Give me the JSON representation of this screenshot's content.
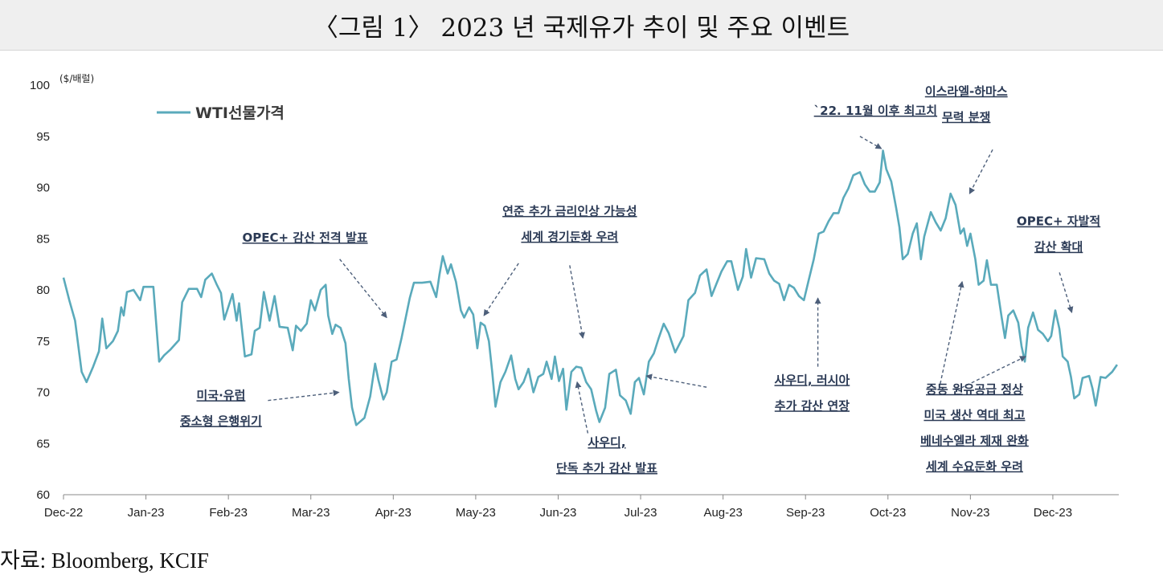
{
  "title": "〈그림 1〉 2023 년 국제유가 추이 및 주요 이벤트",
  "source": "자료: Bloomberg, KCIF",
  "colors": {
    "line": "#5aaabb",
    "arrow": "#4d5f7a",
    "annotation": "#2b3a55",
    "title_bg": "#efefef"
  },
  "chart_data": {
    "type": "line",
    "unit_label": "($/배럴)",
    "ylim": [
      60,
      100
    ],
    "yticks": [
      100,
      95,
      90,
      85,
      80,
      75,
      70,
      65,
      60
    ],
    "xlim": [
      0,
      12.8
    ],
    "xticks": [
      {
        "pos": 0,
        "label": "Dec-22"
      },
      {
        "pos": 1,
        "label": "Jan-23"
      },
      {
        "pos": 2,
        "label": "Feb-23"
      },
      {
        "pos": 3,
        "label": "Mar-23"
      },
      {
        "pos": 4,
        "label": "Apr-23"
      },
      {
        "pos": 5,
        "label": "May-23"
      },
      {
        "pos": 6,
        "label": "Jun-23"
      },
      {
        "pos": 7,
        "label": "Jul-23"
      },
      {
        "pos": 8,
        "label": "Aug-23"
      },
      {
        "pos": 9,
        "label": "Sep-23"
      },
      {
        "pos": 10,
        "label": "Oct-23"
      },
      {
        "pos": 11,
        "label": "Nov-23"
      },
      {
        "pos": 12,
        "label": "Dec-23"
      }
    ],
    "grid": false,
    "legend_position": "top-left",
    "series": [
      {
        "name": "WTI선물가격",
        "points": [
          [
            0.0,
            81.2
          ],
          [
            0.07,
            79.0
          ],
          [
            0.14,
            77.0
          ],
          [
            0.22,
            72.0
          ],
          [
            0.28,
            71.0
          ],
          [
            0.36,
            72.5
          ],
          [
            0.43,
            74.0
          ],
          [
            0.47,
            77.2
          ],
          [
            0.52,
            74.3
          ],
          [
            0.6,
            75.0
          ],
          [
            0.66,
            76.0
          ],
          [
            0.7,
            78.3
          ],
          [
            0.73,
            77.5
          ],
          [
            0.77,
            79.8
          ],
          [
            0.85,
            80.0
          ],
          [
            0.93,
            79.0
          ],
          [
            0.97,
            80.3
          ],
          [
            1.09,
            80.3
          ],
          [
            1.16,
            73.0
          ],
          [
            1.22,
            73.6
          ],
          [
            1.3,
            74.2
          ],
          [
            1.4,
            75.1
          ],
          [
            1.44,
            78.8
          ],
          [
            1.52,
            80.1
          ],
          [
            1.62,
            80.1
          ],
          [
            1.67,
            79.3
          ],
          [
            1.72,
            81.0
          ],
          [
            1.8,
            81.6
          ],
          [
            1.86,
            80.5
          ],
          [
            1.91,
            79.7
          ],
          [
            1.95,
            77.1
          ],
          [
            2.05,
            79.6
          ],
          [
            2.1,
            77.0
          ],
          [
            2.13,
            78.7
          ],
          [
            2.2,
            73.5
          ],
          [
            2.28,
            73.7
          ],
          [
            2.32,
            76.0
          ],
          [
            2.38,
            76.3
          ],
          [
            2.43,
            79.8
          ],
          [
            2.5,
            77.0
          ],
          [
            2.56,
            79.4
          ],
          [
            2.62,
            76.4
          ],
          [
            2.72,
            76.3
          ],
          [
            2.78,
            74.1
          ],
          [
            2.82,
            76.5
          ],
          [
            2.88,
            76.0
          ],
          [
            2.95,
            76.7
          ],
          [
            3.0,
            79.0
          ],
          [
            3.05,
            78.0
          ],
          [
            3.12,
            80.0
          ],
          [
            3.18,
            80.5
          ],
          [
            3.21,
            77.5
          ],
          [
            3.26,
            75.7
          ],
          [
            3.3,
            76.6
          ],
          [
            3.36,
            76.3
          ],
          [
            3.42,
            74.8
          ],
          [
            3.46,
            71.3
          ],
          [
            3.5,
            68.5
          ],
          [
            3.55,
            66.8
          ],
          [
            3.65,
            67.5
          ],
          [
            3.72,
            69.6
          ],
          [
            3.78,
            72.8
          ],
          [
            3.82,
            71.2
          ],
          [
            3.88,
            69.3
          ],
          [
            3.92,
            70.0
          ],
          [
            3.98,
            73.0
          ],
          [
            4.04,
            73.2
          ],
          [
            4.1,
            75.3
          ],
          [
            4.2,
            79.2
          ],
          [
            4.25,
            80.7
          ],
          [
            4.35,
            80.7
          ],
          [
            4.45,
            80.8
          ],
          [
            4.52,
            79.3
          ],
          [
            4.56,
            81.5
          ],
          [
            4.6,
            83.3
          ],
          [
            4.66,
            81.6
          ],
          [
            4.7,
            82.5
          ],
          [
            4.76,
            80.8
          ],
          [
            4.82,
            78.0
          ],
          [
            4.86,
            77.3
          ],
          [
            4.92,
            78.3
          ],
          [
            4.97,
            77.6
          ],
          [
            5.02,
            74.3
          ],
          [
            5.06,
            76.8
          ],
          [
            5.11,
            76.5
          ],
          [
            5.16,
            75.0
          ],
          [
            5.2,
            72.0
          ],
          [
            5.24,
            68.6
          ],
          [
            5.3,
            71.0
          ],
          [
            5.36,
            72.0
          ],
          [
            5.43,
            73.6
          ],
          [
            5.48,
            71.3
          ],
          [
            5.52,
            70.3
          ],
          [
            5.58,
            71.0
          ],
          [
            5.64,
            72.3
          ],
          [
            5.7,
            70.0
          ],
          [
            5.76,
            71.5
          ],
          [
            5.82,
            71.8
          ],
          [
            5.86,
            73.0
          ],
          [
            5.92,
            71.3
          ],
          [
            5.96,
            73.5
          ],
          [
            6.01,
            71.1
          ],
          [
            6.06,
            72.3
          ],
          [
            6.1,
            68.3
          ],
          [
            6.16,
            72.0
          ],
          [
            6.22,
            72.5
          ],
          [
            6.28,
            72.4
          ],
          [
            6.34,
            71.0
          ],
          [
            6.4,
            70.3
          ],
          [
            6.46,
            68.2
          ],
          [
            6.5,
            67.1
          ],
          [
            6.57,
            68.5
          ],
          [
            6.62,
            71.8
          ],
          [
            6.7,
            72.2
          ],
          [
            6.75,
            69.7
          ],
          [
            6.82,
            69.2
          ],
          [
            6.88,
            67.9
          ],
          [
            6.93,
            71.0
          ],
          [
            6.98,
            71.4
          ],
          [
            7.04,
            69.8
          ],
          [
            7.1,
            73.0
          ],
          [
            7.16,
            73.8
          ],
          [
            7.22,
            75.3
          ],
          [
            7.28,
            76.7
          ],
          [
            7.34,
            75.8
          ],
          [
            7.42,
            73.9
          ],
          [
            7.52,
            75.5
          ],
          [
            7.58,
            79.0
          ],
          [
            7.66,
            79.7
          ],
          [
            7.72,
            81.4
          ],
          [
            7.8,
            82.0
          ],
          [
            7.86,
            79.4
          ],
          [
            7.92,
            80.6
          ],
          [
            7.98,
            81.8
          ],
          [
            8.05,
            82.8
          ],
          [
            8.1,
            82.8
          ],
          [
            8.18,
            80.0
          ],
          [
            8.24,
            81.3
          ],
          [
            8.28,
            84.0
          ],
          [
            8.34,
            81.2
          ],
          [
            8.4,
            83.1
          ],
          [
            8.5,
            83.0
          ],
          [
            8.56,
            81.6
          ],
          [
            8.62,
            80.9
          ],
          [
            8.68,
            80.6
          ],
          [
            8.74,
            79.0
          ],
          [
            8.8,
            80.5
          ],
          [
            8.86,
            80.2
          ],
          [
            8.92,
            79.4
          ],
          [
            8.98,
            79.0
          ],
          [
            9.04,
            81.0
          ],
          [
            9.1,
            83.0
          ],
          [
            9.16,
            85.5
          ],
          [
            9.22,
            85.7
          ],
          [
            9.28,
            86.7
          ],
          [
            9.34,
            87.5
          ],
          [
            9.4,
            87.5
          ],
          [
            9.46,
            89.0
          ],
          [
            9.52,
            89.9
          ],
          [
            9.58,
            91.2
          ],
          [
            9.66,
            91.5
          ],
          [
            9.72,
            90.3
          ],
          [
            9.78,
            89.6
          ],
          [
            9.84,
            89.6
          ],
          [
            9.9,
            90.5
          ],
          [
            9.94,
            93.6
          ],
          [
            9.98,
            91.8
          ],
          [
            10.04,
            90.6
          ],
          [
            10.1,
            88.0
          ],
          [
            10.14,
            86.1
          ],
          [
            10.18,
            83.0
          ],
          [
            10.24,
            83.5
          ],
          [
            10.3,
            85.5
          ],
          [
            10.35,
            86.5
          ],
          [
            10.4,
            83.0
          ],
          [
            10.44,
            85.2
          ],
          [
            10.52,
            87.6
          ],
          [
            10.58,
            86.6
          ],
          [
            10.64,
            85.8
          ],
          [
            10.7,
            87.0
          ],
          [
            10.76,
            89.4
          ],
          [
            10.82,
            88.3
          ],
          [
            10.88,
            85.5
          ],
          [
            10.92,
            86.0
          ],
          [
            10.96,
            84.3
          ],
          [
            11.0,
            85.5
          ],
          [
            11.06,
            83.0
          ],
          [
            11.1,
            80.5
          ],
          [
            11.16,
            80.9
          ],
          [
            11.2,
            82.9
          ],
          [
            11.25,
            80.5
          ],
          [
            11.32,
            80.5
          ],
          [
            11.38,
            77.3
          ],
          [
            11.42,
            75.3
          ],
          [
            11.46,
            77.5
          ],
          [
            11.52,
            78.0
          ],
          [
            11.58,
            76.8
          ],
          [
            11.62,
            74.5
          ],
          [
            11.66,
            73.0
          ],
          [
            11.7,
            76.3
          ],
          [
            11.76,
            77.8
          ],
          [
            11.82,
            76.1
          ],
          [
            11.88,
            75.7
          ],
          [
            11.94,
            75.0
          ],
          [
            11.98,
            75.5
          ],
          [
            12.03,
            78.0
          ],
          [
            12.08,
            76.2
          ],
          [
            12.12,
            73.5
          ],
          [
            12.18,
            73.0
          ],
          [
            12.22,
            71.5
          ],
          [
            12.26,
            69.4
          ],
          [
            12.32,
            69.8
          ],
          [
            12.36,
            71.4
          ],
          [
            12.44,
            71.6
          ],
          [
            12.48,
            70.4
          ],
          [
            12.52,
            68.7
          ],
          [
            12.58,
            71.5
          ],
          [
            12.64,
            71.4
          ],
          [
            12.72,
            72.0
          ],
          [
            12.78,
            72.7
          ]
        ]
      }
    ],
    "annotations": [
      {
        "lines": [
          "`22. 11월 이후 최고치"
        ],
        "text_x": 9.85,
        "text_y": 97.1,
        "arrow_from": [
          9.66,
          95.0
        ],
        "arrow_to": [
          9.92,
          93.8
        ]
      },
      {
        "lines": [
          "이스라엘-하마스",
          "무력 분쟁"
        ],
        "text_x": 10.95,
        "text_y": 99.0,
        "arrow_from": [
          11.27,
          93.7
        ],
        "arrow_to": [
          10.99,
          89.4
        ]
      },
      {
        "lines": [
          "OPEC+ 감산 전격 발표"
        ],
        "text_x": 2.93,
        "text_y": 84.7,
        "arrow_from": [
          3.35,
          83.0
        ],
        "arrow_to": [
          3.92,
          77.3
        ]
      },
      {
        "lines": [
          "연준 추가 금리인상 가능성",
          "세계 경기둔화 우려"
        ],
        "text_x": 6.14,
        "text_y": 87.3,
        "arrow_from": [
          5.52,
          82.6
        ],
        "arrow_to": [
          5.1,
          77.5
        ]
      },
      {
        "lines": [
          "OPEC+ 자발적",
          "감산 확대"
        ],
        "text_x": 12.07,
        "text_y": 86.3,
        "arrow_from": [
          12.08,
          81.7
        ],
        "arrow_to": [
          12.23,
          77.8
        ]
      },
      {
        "lines": [
          "미국·유럽",
          "중소형 은행위기"
        ],
        "text_x": 1.91,
        "text_y": 69.3,
        "arrow_from": [
          2.48,
          69.2
        ],
        "arrow_to": [
          3.34,
          70.0
        ]
      },
      {
        "lines": [
          "사우디, 러시아",
          "추가 감산 연장"
        ],
        "text_x": 9.08,
        "text_y": 70.8,
        "arrow_from": [
          7.8,
          70.5
        ],
        "arrow_to": [
          7.07,
          71.6
        ]
      },
      {
        "lines": [
          "사우디,",
          "단독 추가 감산 발표"
        ],
        "text_x": 6.59,
        "text_y": 64.7,
        "arrow_from": [
          6.36,
          66.0
        ],
        "arrow_to": [
          6.23,
          71.0
        ]
      },
      {
        "lines": [
          "중동 원유공급 정상",
          "미국 생산 역대 최고",
          "베네수엘라 제재 완화",
          "세계 수요둔화 우려"
        ],
        "text_x": 11.05,
        "text_y": 69.9,
        "arrow_from": null,
        "arrow_to": null
      }
    ],
    "extra_arrows": [
      {
        "from": [
          6.14,
          82.4
        ],
        "to": [
          6.3,
          75.3
        ]
      },
      {
        "from": [
          9.15,
          72.5
        ],
        "to": [
          9.15,
          79.2
        ]
      },
      {
        "from": [
          10.62,
          70.3
        ],
        "to": [
          10.9,
          80.8
        ]
      },
      {
        "from": [
          10.83,
          70.2
        ],
        "to": [
          11.67,
          73.5
        ]
      }
    ]
  }
}
